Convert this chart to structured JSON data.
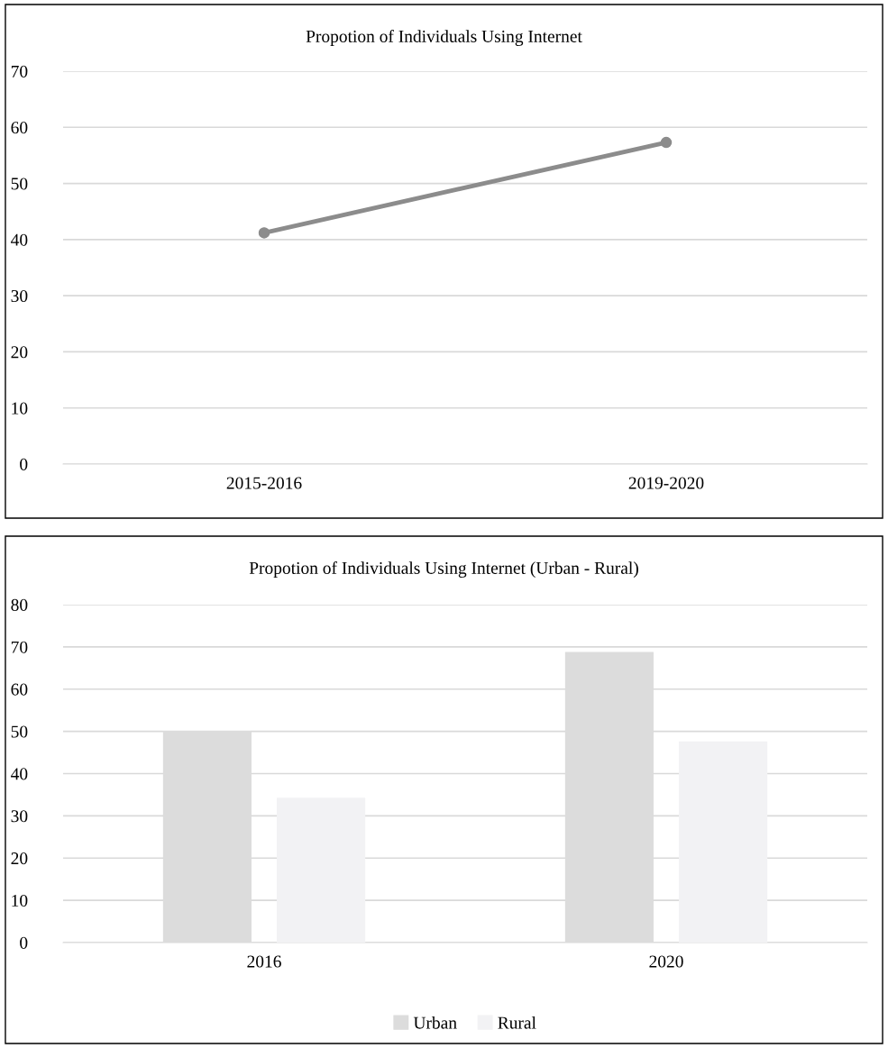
{
  "chart_data": [
    {
      "type": "line",
      "title": "Propotion of Individuals Using Internet",
      "categories": [
        "2015-2016",
        "2019-2020"
      ],
      "series": [
        {
          "color": "#8c8c8c",
          "values": [
            41.2,
            57.3
          ]
        }
      ],
      "ylim": [
        0,
        70
      ],
      "yticks": [
        0,
        10,
        20,
        30,
        40,
        50,
        60,
        70
      ],
      "grid": "y",
      "marker": "circle",
      "line_style": "solid"
    },
    {
      "type": "bar",
      "title": "Propotion of Individuals Using Internet (Urban - Rural)",
      "categories": [
        "2016",
        "2020"
      ],
      "series": [
        {
          "name": "Urban",
          "color": "#dcdcdc",
          "values": [
            50.1,
            68.8
          ]
        },
        {
          "name": "Rural",
          "color": "#f2f2f4",
          "values": [
            34.3,
            47.6
          ]
        }
      ],
      "ylim": [
        0,
        80
      ],
      "yticks": [
        0,
        10,
        20,
        30,
        40,
        50,
        60,
        70,
        80
      ],
      "grid": "y",
      "legend": "bottom"
    }
  ]
}
